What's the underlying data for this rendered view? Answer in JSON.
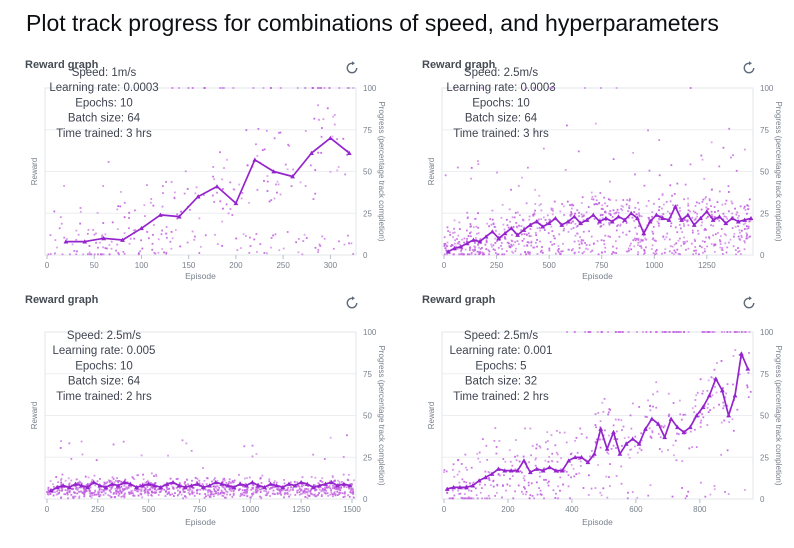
{
  "page": {
    "title": "Plot track progress for combinations of speed, and hyperparameters"
  },
  "icons": {
    "refresh": "↻"
  },
  "colors": {
    "line": "#9524cd",
    "scatter": "#c263e0",
    "grid": "#eceef1",
    "border": "#e2e6ea",
    "tick_text": "#79818c",
    "annotation_text": "#3f4450",
    "panel_title_text": "#454c54",
    "page_title_text": "#0d0f12",
    "icon": "#5f6b7a"
  },
  "axis": {
    "x_label": "Episode",
    "y_left_label": "Reward",
    "y_right_label": "Progress (percentage track completion)",
    "y_ticks": [
      0,
      25,
      50,
      75,
      100
    ],
    "ylim": [
      0,
      100
    ]
  },
  "chart_data": [
    {
      "id": "top-left",
      "type": "scatter",
      "title": "Reward graph",
      "row": "top",
      "params": [
        "Speed: 1m/s",
        "Learning rate: 0.0003",
        "Epochs: 10",
        "Batch size: 64",
        "Time trained: 3 hrs"
      ],
      "x_ticks": [
        0,
        50,
        100,
        150,
        200,
        250,
        300
      ],
      "x_max": 325,
      "line": {
        "name": "mean progress",
        "x": [
          20,
          40,
          60,
          80,
          100,
          120,
          140,
          160,
          180,
          200,
          220,
          240,
          260,
          280,
          300,
          320
        ],
        "y": [
          8,
          8,
          10,
          9,
          16,
          24,
          23,
          35,
          41,
          31,
          57,
          50,
          47,
          61,
          70,
          61
        ]
      },
      "scatter_sim": {
        "count": 310,
        "seed": 11,
        "mode": "line",
        "noise": 26,
        "floor_rate": 0.28,
        "floor_max": 14,
        "tail_rate": 0.02,
        "tail_add": 25,
        "top_from": 120,
        "top_rate": 0.22
      }
    },
    {
      "id": "top-right",
      "type": "scatter",
      "title": "Reward graph",
      "row": "top",
      "params": [
        "Speed: 2.5m/s",
        "Learning rate: 0.0003",
        "Epochs: 10",
        "Batch size: 64",
        "Time trained: 3 hrs"
      ],
      "x_ticks": [
        0,
        250,
        500,
        750,
        1000,
        1250
      ],
      "x_max": 1460,
      "line": {
        "name": "mean progress",
        "x": [
          20,
          50,
          80,
          110,
          140,
          170,
          200,
          230,
          260,
          290,
          320,
          350,
          380,
          410,
          440,
          470,
          500,
          530,
          560,
          590,
          620,
          650,
          680,
          710,
          740,
          770,
          800,
          830,
          860,
          890,
          920,
          950,
          980,
          1010,
          1040,
          1070,
          1100,
          1130,
          1160,
          1190,
          1220,
          1250,
          1280,
          1310,
          1340,
          1370,
          1400,
          1430,
          1460
        ],
        "y": [
          2,
          4,
          5,
          7,
          9,
          8,
          11,
          14,
          10,
          13,
          16,
          12,
          15,
          18,
          20,
          17,
          19,
          22,
          18,
          20,
          23,
          19,
          21,
          24,
          20,
          22,
          20,
          23,
          21,
          25,
          22,
          13,
          20,
          24,
          22,
          21,
          29,
          21,
          24,
          18,
          22,
          26,
          21,
          23,
          19,
          22,
          20,
          21,
          22
        ]
      },
      "scatter_sim": {
        "count": 880,
        "seed": 22,
        "mode": "line",
        "noise": 16,
        "floor_rate": 0.3,
        "floor_max": 10,
        "tail_rate": 0.06,
        "tail_add": 40,
        "top_from": 0,
        "top_rate": 0,
        "top_any_rate": 0.012
      }
    },
    {
      "id": "bottom-left",
      "type": "scatter",
      "title": "Reward graph",
      "row": "bottom",
      "params": [
        "Speed: 2.5m/s",
        "Learning rate: 0.005",
        "Epochs: 10",
        "Batch size: 64",
        "Time trained: 2 hrs"
      ],
      "x_ticks": [
        0,
        250,
        500,
        750,
        1000,
        1250,
        1500
      ],
      "x_max": 1510,
      "line": {
        "name": "mean progress",
        "x": [
          20,
          50,
          80,
          110,
          140,
          170,
          200,
          230,
          260,
          290,
          320,
          350,
          380,
          410,
          440,
          470,
          500,
          530,
          560,
          590,
          620,
          650,
          680,
          710,
          740,
          770,
          800,
          830,
          860,
          890,
          920,
          950,
          980,
          1010,
          1040,
          1070,
          1100,
          1130,
          1160,
          1190,
          1220,
          1250,
          1280,
          1310,
          1340,
          1370,
          1400,
          1430,
          1460,
          1490
        ],
        "y": [
          5,
          7,
          8,
          7,
          9,
          8,
          7,
          10,
          8,
          7,
          9,
          8,
          10,
          9,
          7,
          8,
          9,
          8,
          7,
          9,
          10,
          8,
          7,
          8,
          9,
          7,
          8,
          10,
          9,
          8,
          7,
          9,
          8,
          10,
          8,
          7,
          9,
          8,
          7,
          9,
          8,
          10,
          9,
          7,
          8,
          9,
          10,
          8,
          9,
          8
        ]
      },
      "scatter_sim": {
        "count": 950,
        "seed": 33,
        "mode": "flat",
        "noise": 9,
        "floor_rate": 0,
        "floor_max": 0,
        "tail_rate": 0.03,
        "tail_add": 18
      }
    },
    {
      "id": "bottom-right",
      "type": "scatter",
      "title": "Reward graph",
      "row": "bottom",
      "params": [
        "Speed: 2.5m/s",
        "Learning rate: 0.001",
        "Epochs: 5",
        "Batch size: 32",
        "Time trained: 2 hrs"
      ],
      "x_ticks": [
        0,
        200,
        400,
        600,
        800
      ],
      "x_max": 960,
      "line": {
        "name": "mean progress",
        "x": [
          10,
          30,
          50,
          70,
          90,
          110,
          130,
          150,
          170,
          190,
          210,
          230,
          250,
          270,
          290,
          310,
          330,
          350,
          370,
          390,
          410,
          430,
          450,
          470,
          490,
          510,
          530,
          550,
          570,
          590,
          610,
          630,
          650,
          670,
          690,
          710,
          730,
          750,
          770,
          790,
          810,
          830,
          850,
          870,
          890,
          910,
          930,
          950
        ],
        "y": [
          6,
          7,
          7,
          7,
          8,
          11,
          13,
          15,
          18,
          17,
          17,
          17,
          23,
          16,
          18,
          17,
          19,
          17,
          17,
          23,
          25,
          25,
          22,
          27,
          42,
          30,
          40,
          27,
          33,
          36,
          33,
          42,
          48,
          45,
          37,
          48,
          43,
          40,
          43,
          50,
          55,
          62,
          72,
          65,
          50,
          62,
          87,
          78
        ]
      },
      "scatter_sim": {
        "count": 520,
        "seed": 44,
        "mode": "line",
        "noise": 22,
        "floor_rate": 0.1,
        "floor_max": 10,
        "tail_rate": 0.02,
        "tail_add": 28,
        "top_from": 380,
        "top_rate": 0.34
      }
    }
  ]
}
